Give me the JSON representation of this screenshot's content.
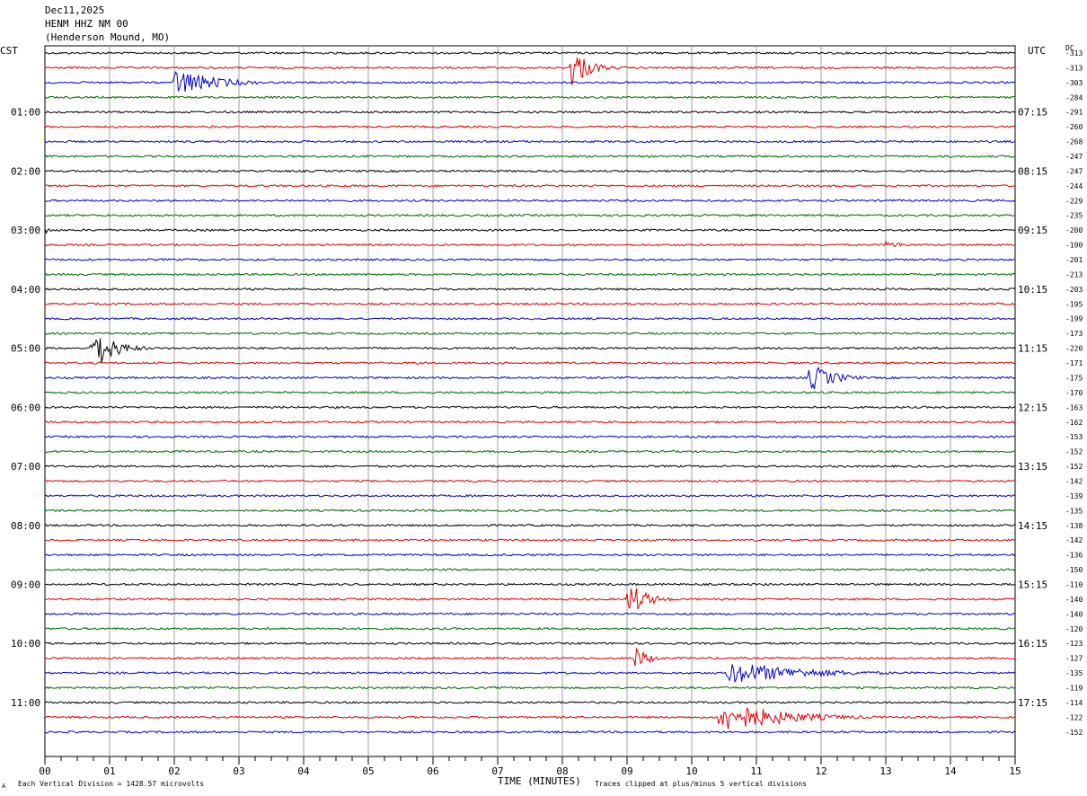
{
  "header": {
    "date": "Dec11,2025",
    "station": "HENM HHZ NM 00",
    "location": "(Henderson Mound, MO)"
  },
  "axes": {
    "left_timezone": "CST",
    "right_timezone": "UTC",
    "dc_header": "DC",
    "xlabel": "TIME (MINUTES)",
    "scale_note": "Each Vertical Division = 1428.57 microvolts",
    "clip_note": "Traces clipped at plus/minus 5 vertical divisions",
    "small_mark": "А"
  },
  "colors": {
    "black": "#000000",
    "red": "#dd0000",
    "blue": "#0000cc",
    "green": "#006600",
    "grid": "#a0a0a0"
  },
  "chart_data": {
    "type": "line",
    "xlim": [
      0,
      15
    ],
    "x_ticks": [
      "00",
      "01",
      "02",
      "03",
      "04",
      "05",
      "06",
      "07",
      "08",
      "09",
      "10",
      "11",
      "12",
      "13",
      "14",
      "15"
    ],
    "trace_color_cycle": [
      "black",
      "red",
      "blue",
      "green"
    ],
    "traces_per_hour": 4,
    "minutes_per_trace": 15,
    "left_hour_labels": [
      "01:00",
      "02:00",
      "03:00",
      "04:00",
      "05:00",
      "06:00",
      "07:00",
      "08:00",
      "09:00",
      "10:00",
      "11:00"
    ],
    "right_hour_labels": [
      "07:15",
      "08:15",
      "09:15",
      "10:15",
      "11:15",
      "12:15",
      "13:15",
      "14:15",
      "15:15",
      "16:15",
      "17:15"
    ],
    "dc_offsets": [
      -313,
      -313,
      -303,
      -284,
      -291,
      -260,
      -268,
      -247,
      -247,
      -244,
      -229,
      -235,
      -200,
      -190,
      -201,
      -213,
      -203,
      -195,
      -199,
      -173,
      -220,
      -171,
      -175,
      -170,
      -163,
      -162,
      -153,
      -152,
      -152,
      -142,
      -139,
      -135,
      -138,
      -142,
      -136,
      -150,
      -110,
      -140,
      -140,
      -120,
      -123,
      -127,
      -135,
      -119,
      -114,
      -122,
      -152
    ],
    "events": [
      {
        "trace": 1,
        "start_min": 8.1,
        "end_min": 9.1,
        "amplitude_div": 1.6
      },
      {
        "trace": 2,
        "start_min": 2.0,
        "end_min": 4.2,
        "amplitude_div": 1.0
      },
      {
        "trace": 12,
        "start_min": 0.0,
        "end_min": 0.4,
        "amplitude_div": 0.3
      },
      {
        "trace": 13,
        "start_min": 13.0,
        "end_min": 14.0,
        "amplitude_div": 0.3
      },
      {
        "trace": 20,
        "start_min": 0.7,
        "end_min": 1.9,
        "amplitude_div": 1.7
      },
      {
        "trace": 22,
        "start_min": 11.8,
        "end_min": 13.2,
        "amplitude_div": 1.0
      },
      {
        "trace": 37,
        "start_min": 9.0,
        "end_min": 10.1,
        "amplitude_div": 1.2
      },
      {
        "trace": 41,
        "start_min": 9.1,
        "end_min": 9.9,
        "amplitude_div": 0.9
      },
      {
        "trace": 42,
        "start_min": 10.5,
        "end_min": 15.0,
        "amplitude_div": 0.8
      },
      {
        "trace": 45,
        "start_min": 10.4,
        "end_min": 14.0,
        "amplitude_div": 1.1
      }
    ]
  }
}
